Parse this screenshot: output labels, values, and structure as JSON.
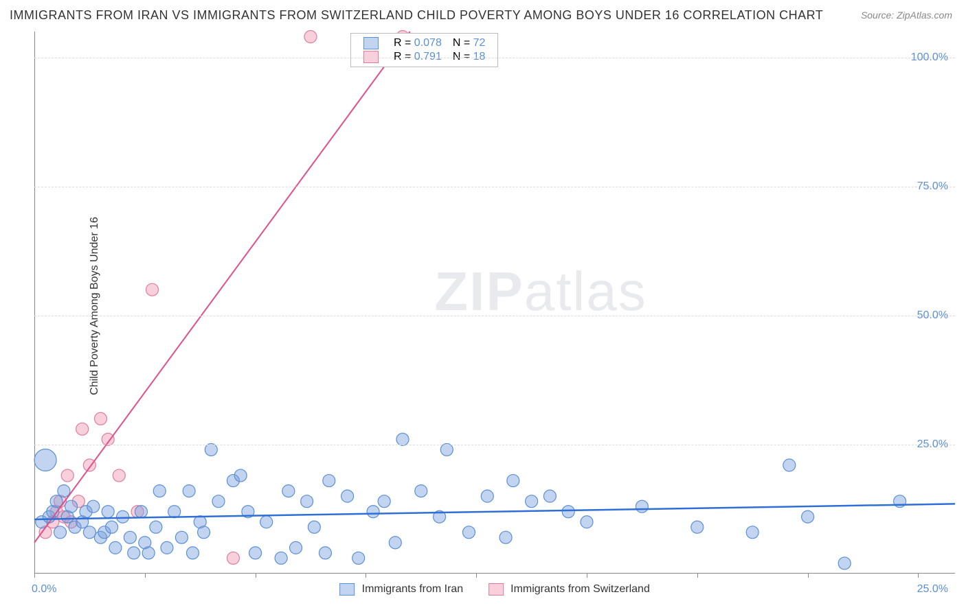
{
  "title": "IMMIGRANTS FROM IRAN VS IMMIGRANTS FROM SWITZERLAND CHILD POVERTY AMONG BOYS UNDER 16 CORRELATION CHART",
  "source": "Source: ZipAtlas.com",
  "ylabel": "Child Poverty Among Boys Under 16",
  "watermark_a": "ZIP",
  "watermark_b": "atlas",
  "chart": {
    "type": "scatter",
    "xlim": [
      0,
      25
    ],
    "ylim": [
      0,
      105
    ],
    "x_tick_positions": [
      0,
      3,
      6,
      9,
      12,
      15,
      18,
      21,
      24
    ],
    "x_tick_labels": {
      "start": "0.0%",
      "end": "25.0%"
    },
    "y_ticks": [
      25,
      50,
      75,
      100
    ],
    "y_tick_labels": [
      "25.0%",
      "50.0%",
      "75.0%",
      "100.0%"
    ],
    "grid_color": "#dddddd",
    "axis_color": "#888888",
    "background_color": "#ffffff",
    "series": [
      {
        "name": "Immigrants from Iran",
        "color_fill": "rgba(120,160,220,0.45)",
        "color_stroke": "#5b8fd6",
        "line_color": "#2d6fd6",
        "line_width": 2.5,
        "marker_r": 9,
        "R": "0.078",
        "N": "72",
        "trend": {
          "x1": 0,
          "y1": 10.5,
          "x2": 25,
          "y2": 13.5
        },
        "points": [
          [
            0.2,
            10
          ],
          [
            0.3,
            22,
            16
          ],
          [
            0.4,
            11
          ],
          [
            0.5,
            12
          ],
          [
            0.6,
            14
          ],
          [
            0.7,
            8
          ],
          [
            0.8,
            16
          ],
          [
            0.9,
            11
          ],
          [
            1.0,
            13
          ],
          [
            1.1,
            9
          ],
          [
            1.3,
            10
          ],
          [
            1.4,
            12
          ],
          [
            1.5,
            8
          ],
          [
            1.6,
            13
          ],
          [
            1.8,
            7
          ],
          [
            1.9,
            8
          ],
          [
            2.0,
            12
          ],
          [
            2.1,
            9
          ],
          [
            2.2,
            5
          ],
          [
            2.4,
            11
          ],
          [
            2.6,
            7
          ],
          [
            2.7,
            4
          ],
          [
            2.9,
            12
          ],
          [
            3.0,
            6
          ],
          [
            3.1,
            4
          ],
          [
            3.3,
            9
          ],
          [
            3.4,
            16
          ],
          [
            3.6,
            5
          ],
          [
            3.8,
            12
          ],
          [
            4.0,
            7
          ],
          [
            4.2,
            16
          ],
          [
            4.3,
            4
          ],
          [
            4.5,
            10
          ],
          [
            4.6,
            8
          ],
          [
            4.8,
            24
          ],
          [
            5.0,
            14
          ],
          [
            5.4,
            18
          ],
          [
            5.6,
            19
          ],
          [
            5.8,
            12
          ],
          [
            6.0,
            4
          ],
          [
            6.3,
            10
          ],
          [
            6.7,
            3
          ],
          [
            6.9,
            16
          ],
          [
            7.1,
            5
          ],
          [
            7.4,
            14
          ],
          [
            7.6,
            9
          ],
          [
            7.9,
            4
          ],
          [
            8.0,
            18
          ],
          [
            8.5,
            15
          ],
          [
            8.8,
            3
          ],
          [
            9.2,
            12
          ],
          [
            9.5,
            14
          ],
          [
            9.8,
            6
          ],
          [
            10.0,
            26
          ],
          [
            10.5,
            16
          ],
          [
            11.0,
            11
          ],
          [
            11.2,
            24
          ],
          [
            11.8,
            8
          ],
          [
            12.3,
            15
          ],
          [
            12.8,
            7
          ],
          [
            13.0,
            18
          ],
          [
            13.5,
            14
          ],
          [
            14.0,
            15
          ],
          [
            14.5,
            12
          ],
          [
            15.0,
            10
          ],
          [
            16.5,
            13
          ],
          [
            18.0,
            9
          ],
          [
            19.5,
            8
          ],
          [
            20.5,
            21
          ],
          [
            21.0,
            11
          ],
          [
            22.0,
            2
          ],
          [
            23.5,
            14
          ]
        ]
      },
      {
        "name": "Immigrants from Switzerland",
        "color_fill": "rgba(240,150,175,0.45)",
        "color_stroke": "#e07ba0",
        "line_color": "#e04f8a",
        "line_width": 2,
        "marker_r": 9,
        "R": "0.791",
        "N": "18",
        "trend": {
          "x1": 0,
          "y1": 6,
          "x2": 10.2,
          "y2": 105
        },
        "points": [
          [
            0.3,
            8
          ],
          [
            0.5,
            10
          ],
          [
            0.6,
            12
          ],
          [
            0.7,
            14
          ],
          [
            0.8,
            11
          ],
          [
            0.9,
            19
          ],
          [
            1.0,
            10
          ],
          [
            1.2,
            14
          ],
          [
            1.3,
            28
          ],
          [
            1.5,
            21
          ],
          [
            1.8,
            30
          ],
          [
            2.0,
            26
          ],
          [
            2.3,
            19
          ],
          [
            2.8,
            12
          ],
          [
            3.2,
            55
          ],
          [
            5.4,
            3
          ],
          [
            7.5,
            104
          ],
          [
            10.0,
            104
          ]
        ]
      }
    ],
    "legend_box": {
      "r_label": "R =",
      "n_label": "N ="
    }
  },
  "bottom_legend": {
    "s1": "Immigrants from Iran",
    "s2": "Immigrants from Switzerland"
  }
}
